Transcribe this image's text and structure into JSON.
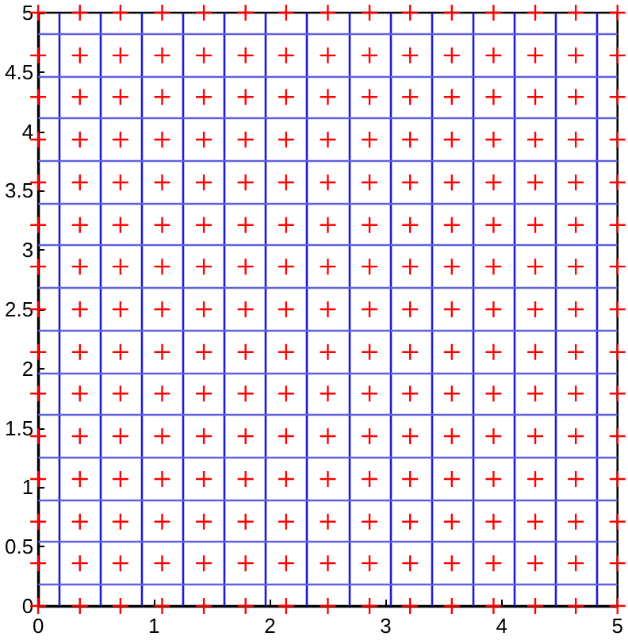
{
  "chart_data": {
    "type": "scatter",
    "marker": "cross",
    "grid": false,
    "xlim": [
      0,
      5
    ],
    "ylim": [
      0,
      5
    ],
    "xticks": [
      0,
      1,
      2,
      3,
      4,
      5
    ],
    "yticks": [
      0,
      0.5,
      1,
      1.5,
      2,
      2.5,
      3,
      3.5,
      4,
      4.5,
      5
    ],
    "series": [
      {
        "color": "#ff0000",
        "x": [
          0,
          0.36,
          0.71,
          1.07,
          1.43,
          1.79,
          2.14,
          2.5,
          2.86,
          3.21,
          3.57,
          3.93,
          4.29,
          4.64,
          5,
          0,
          0.36,
          0.71,
          1.07,
          1.43,
          1.79,
          2.14,
          2.5,
          2.86,
          3.21,
          3.57,
          3.93,
          4.29,
          4.64,
          5,
          0,
          0.36,
          0.71,
          1.07,
          1.43,
          1.79,
          2.14,
          2.5,
          2.86,
          3.21,
          3.57,
          3.93,
          4.29,
          4.64,
          5,
          0,
          0.36,
          0.71,
          1.07,
          1.43,
          1.79,
          2.14,
          2.5,
          2.86,
          3.21,
          3.57,
          3.93,
          4.29,
          4.64,
          5,
          0,
          0.36,
          0.71,
          1.07,
          1.43,
          1.79,
          2.14,
          2.5,
          2.86,
          3.21,
          3.57,
          3.93,
          4.29,
          4.64,
          5,
          0,
          0.36,
          0.71,
          1.07,
          1.43,
          1.79,
          2.14,
          2.5,
          2.86,
          3.21,
          3.57,
          3.93,
          4.29,
          4.64,
          5,
          0,
          0.36,
          0.71,
          1.07,
          1.43,
          1.79,
          2.14,
          2.5,
          2.86,
          3.21,
          3.57,
          3.93,
          4.29,
          4.64,
          5,
          0,
          0.36,
          0.71,
          1.07,
          1.43,
          1.79,
          2.14,
          2.5,
          2.86,
          3.21,
          3.57,
          3.93,
          4.29,
          4.64,
          5,
          0,
          0.36,
          0.71,
          1.07,
          1.43,
          1.79,
          2.14,
          2.5,
          2.86,
          3.21,
          3.57,
          3.93,
          4.29,
          4.64,
          5,
          0,
          0.36,
          0.71,
          1.07,
          1.43,
          1.79,
          2.14,
          2.5,
          2.86,
          3.21,
          3.57,
          3.93,
          4.29,
          4.64,
          5,
          0,
          0.36,
          0.71,
          1.07,
          1.43,
          1.79,
          2.14,
          2.5,
          2.86,
          3.21,
          3.57,
          3.93,
          4.29,
          4.64,
          5,
          0,
          0.36,
          0.71,
          1.07,
          1.43,
          1.79,
          2.14,
          2.5,
          2.86,
          3.21,
          3.57,
          3.93,
          4.29,
          4.64,
          5,
          0,
          0.36,
          0.71,
          1.07,
          1.43,
          1.79,
          2.14,
          2.5,
          2.86,
          3.21,
          3.57,
          3.93,
          4.29,
          4.64,
          5,
          0,
          0.36,
          0.71,
          1.07,
          1.43,
          1.79,
          2.14,
          2.5,
          2.86,
          3.21,
          3.57,
          3.93,
          4.29,
          4.64,
          5,
          0,
          0.36,
          0.71,
          1.07,
          1.43,
          1.79,
          2.14,
          2.5,
          2.86,
          3.21,
          3.57,
          3.93,
          4.29,
          4.64,
          5
        ],
        "values": [
          0,
          0,
          0,
          0,
          0,
          0,
          0,
          0,
          0,
          0,
          0,
          0,
          0,
          0,
          0,
          0.36,
          0.36,
          0.36,
          0.36,
          0.36,
          0.36,
          0.36,
          0.36,
          0.36,
          0.36,
          0.36,
          0.36,
          0.36,
          0.36,
          0.36,
          0.71,
          0.71,
          0.71,
          0.71,
          0.71,
          0.71,
          0.71,
          0.71,
          0.71,
          0.71,
          0.71,
          0.71,
          0.71,
          0.71,
          0.71,
          1.07,
          1.07,
          1.07,
          1.07,
          1.07,
          1.07,
          1.07,
          1.07,
          1.07,
          1.07,
          1.07,
          1.07,
          1.07,
          1.07,
          1.07,
          1.43,
          1.43,
          1.43,
          1.43,
          1.43,
          1.43,
          1.43,
          1.43,
          1.43,
          1.43,
          1.43,
          1.43,
          1.43,
          1.43,
          1.43,
          1.79,
          1.79,
          1.79,
          1.79,
          1.79,
          1.79,
          1.79,
          1.79,
          1.79,
          1.79,
          1.79,
          1.79,
          1.79,
          1.79,
          1.79,
          2.14,
          2.14,
          2.14,
          2.14,
          2.14,
          2.14,
          2.14,
          2.14,
          2.14,
          2.14,
          2.14,
          2.14,
          2.14,
          2.14,
          2.14,
          2.5,
          2.5,
          2.5,
          2.5,
          2.5,
          2.5,
          2.5,
          2.5,
          2.5,
          2.5,
          2.5,
          2.5,
          2.5,
          2.5,
          2.5,
          2.86,
          2.86,
          2.86,
          2.86,
          2.86,
          2.86,
          2.86,
          2.86,
          2.86,
          2.86,
          2.86,
          2.86,
          2.86,
          2.86,
          2.86,
          3.21,
          3.21,
          3.21,
          3.21,
          3.21,
          3.21,
          3.21,
          3.21,
          3.21,
          3.21,
          3.21,
          3.21,
          3.21,
          3.21,
          3.21,
          3.57,
          3.57,
          3.57,
          3.57,
          3.57,
          3.57,
          3.57,
          3.57,
          3.57,
          3.57,
          3.57,
          3.57,
          3.57,
          3.57,
          3.57,
          3.93,
          3.93,
          3.93,
          3.93,
          3.93,
          3.93,
          3.93,
          3.93,
          3.93,
          3.93,
          3.93,
          3.93,
          3.93,
          3.93,
          3.93,
          4.29,
          4.29,
          4.29,
          4.29,
          4.29,
          4.29,
          4.29,
          4.29,
          4.29,
          4.29,
          4.29,
          4.29,
          4.29,
          4.29,
          4.29,
          4.64,
          4.64,
          4.64,
          4.64,
          4.64,
          4.64,
          4.64,
          4.64,
          4.64,
          4.64,
          4.64,
          4.64,
          4.64,
          4.64,
          4.64,
          5,
          5,
          5,
          5,
          5,
          5,
          5,
          5,
          5,
          5,
          5,
          5,
          5,
          5,
          5
        ]
      }
    ],
    "ref_lines": [
      {
        "axis": "x",
        "value": 0.18,
        "color": "#1c1cd0"
      },
      {
        "axis": "x",
        "value": 0.54,
        "color": "#1c1cd0"
      },
      {
        "axis": "x",
        "value": 0.89,
        "color": "#1c1cd0"
      },
      {
        "axis": "x",
        "value": 1.25,
        "color": "#1c1cd0"
      },
      {
        "axis": "x",
        "value": 1.61,
        "color": "#1c1cd0"
      },
      {
        "axis": "x",
        "value": 1.96,
        "color": "#1c1cd0"
      },
      {
        "axis": "x",
        "value": 2.32,
        "color": "#1c1cd0"
      },
      {
        "axis": "x",
        "value": 2.68,
        "color": "#1c1cd0"
      },
      {
        "axis": "x",
        "value": 3.04,
        "color": "#1c1cd0"
      },
      {
        "axis": "x",
        "value": 3.39,
        "color": "#1c1cd0"
      },
      {
        "axis": "x",
        "value": 3.75,
        "color": "#1c1cd0"
      },
      {
        "axis": "x",
        "value": 4.11,
        "color": "#1c1cd0"
      },
      {
        "axis": "x",
        "value": 4.46,
        "color": "#1c1cd0"
      },
      {
        "axis": "x",
        "value": 4.82,
        "color": "#1c1cd0"
      },
      {
        "axis": "y",
        "value": 0.18,
        "color": "#6060e0"
      },
      {
        "axis": "y",
        "value": 0.54,
        "color": "#6060e0"
      },
      {
        "axis": "y",
        "value": 0.89,
        "color": "#6060e0"
      },
      {
        "axis": "y",
        "value": 1.25,
        "color": "#6060e0"
      },
      {
        "axis": "y",
        "value": 1.61,
        "color": "#6060e0"
      },
      {
        "axis": "y",
        "value": 1.96,
        "color": "#6060e0"
      },
      {
        "axis": "y",
        "value": 2.32,
        "color": "#6060e0"
      },
      {
        "axis": "y",
        "value": 2.68,
        "color": "#6060e0"
      },
      {
        "axis": "y",
        "value": 3.04,
        "color": "#6060e0"
      },
      {
        "axis": "y",
        "value": 3.39,
        "color": "#6060e0"
      },
      {
        "axis": "y",
        "value": 3.75,
        "color": "#6060e0"
      },
      {
        "axis": "y",
        "value": 4.11,
        "color": "#6060e0"
      },
      {
        "axis": "y",
        "value": 4.46,
        "color": "#6060e0"
      },
      {
        "axis": "y",
        "value": 4.82,
        "color": "#6060e0"
      }
    ]
  }
}
